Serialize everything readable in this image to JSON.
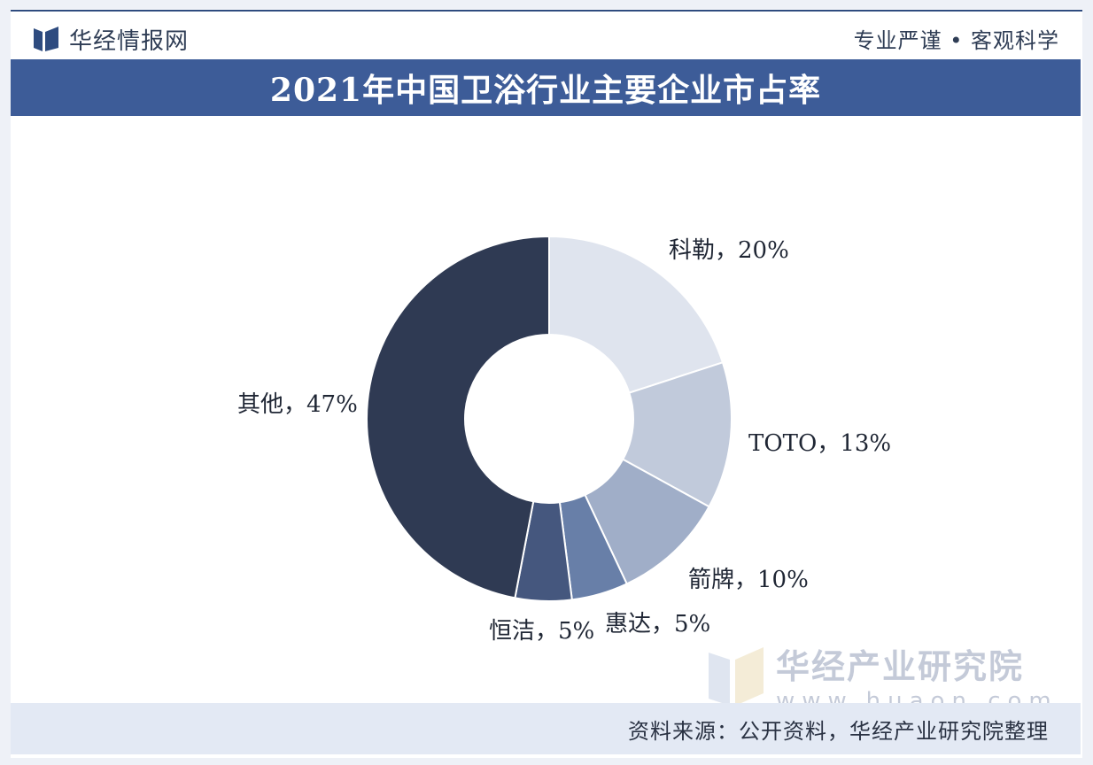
{
  "header": {
    "brand_name": "华经情报网",
    "slogan": "专业严谨 • 客观科学"
  },
  "colors": {
    "title_bar": "#3d5c98",
    "slices": [
      "#dfe4ee",
      "#c1cadb",
      "#a0aec8",
      "#687fa8",
      "#45577e",
      "#2f3a53"
    ]
  },
  "watermark": {
    "name": "华经产业研究院",
    "url": "www.huaon.com"
  },
  "footer": {
    "source": "资料来源：公开资料，华经产业研究院整理"
  },
  "chart_data": {
    "type": "pie",
    "variant": "donut",
    "title": "2021年中国卫浴行业主要企业市占率",
    "legend": "none",
    "slices": [
      {
        "name": "科勒",
        "value": 20,
        "value_label": "20%",
        "label": "科勒，20%"
      },
      {
        "name": "TOTO",
        "value": 13,
        "value_label": "13%",
        "label": "TOTO，13%"
      },
      {
        "name": "箭牌",
        "value": 10,
        "value_label": "10%",
        "label": "箭牌，10%"
      },
      {
        "name": "惠达",
        "value": 5,
        "value_label": "5%",
        "label": "惠达，5%"
      },
      {
        "name": "恒洁",
        "value": 5,
        "value_label": "5%",
        "label": "恒洁，5%"
      },
      {
        "name": "其他",
        "value": 47,
        "value_label": "47%",
        "label": "其他，47%"
      }
    ]
  }
}
